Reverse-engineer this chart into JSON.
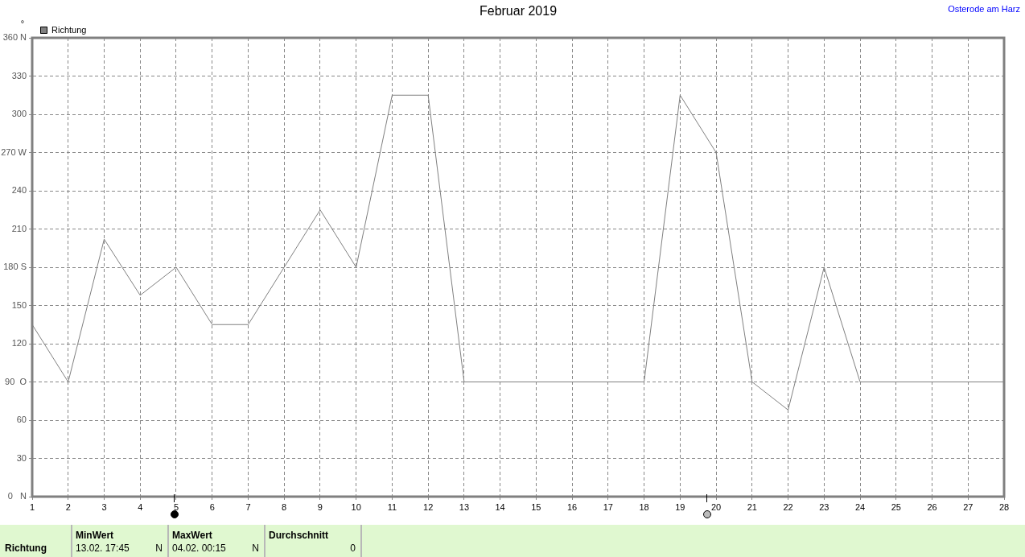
{
  "chart_data": {
    "type": "line",
    "title": "Februar 2019",
    "ylabel": "°",
    "annotations": [
      "Osterode am Harz",
      "Richtung",
      "MinWert",
      "13.02. 17:45",
      "N",
      "MaxWert",
      "04.02. 00:15",
      "N",
      "Durchschnitt",
      "0"
    ],
    "x": [
      1,
      2,
      3,
      4,
      5,
      6,
      7,
      8,
      9,
      10,
      11,
      12,
      13,
      14,
      15,
      16,
      17,
      18,
      19,
      20,
      21,
      22,
      23,
      24,
      25,
      26,
      27,
      28
    ],
    "series": [
      {
        "name": "Richtung",
        "color": "#808080",
        "values": [
          135,
          90,
          202,
          158,
          180,
          135,
          135,
          180,
          225,
          180,
          315,
          315,
          90,
          90,
          90,
          90,
          90,
          90,
          315,
          270,
          90,
          68,
          180,
          90,
          90,
          90,
          90,
          90
        ]
      }
    ],
    "xlim": [
      1,
      28
    ],
    "xticks": [
      1,
      2,
      3,
      4,
      5,
      6,
      7,
      8,
      9,
      10,
      11,
      12,
      13,
      14,
      15,
      16,
      17,
      18,
      19,
      20,
      21,
      22,
      23,
      24,
      25,
      26,
      27,
      28
    ],
    "ylim": [
      0,
      360
    ],
    "yticks": [
      {
        "value": 0,
        "label": "0   N"
      },
      30,
      60,
      {
        "value": 90,
        "label": "90  O"
      },
      120,
      150,
      {
        "value": 180,
        "label": "180 S"
      },
      210,
      240,
      {
        "value": 270,
        "label": "270 W"
      },
      300,
      330,
      {
        "value": 360,
        "label": "360 N"
      }
    ],
    "grid": true,
    "legend": "top left",
    "marker": "none",
    "line_style": "solid"
  }
}
